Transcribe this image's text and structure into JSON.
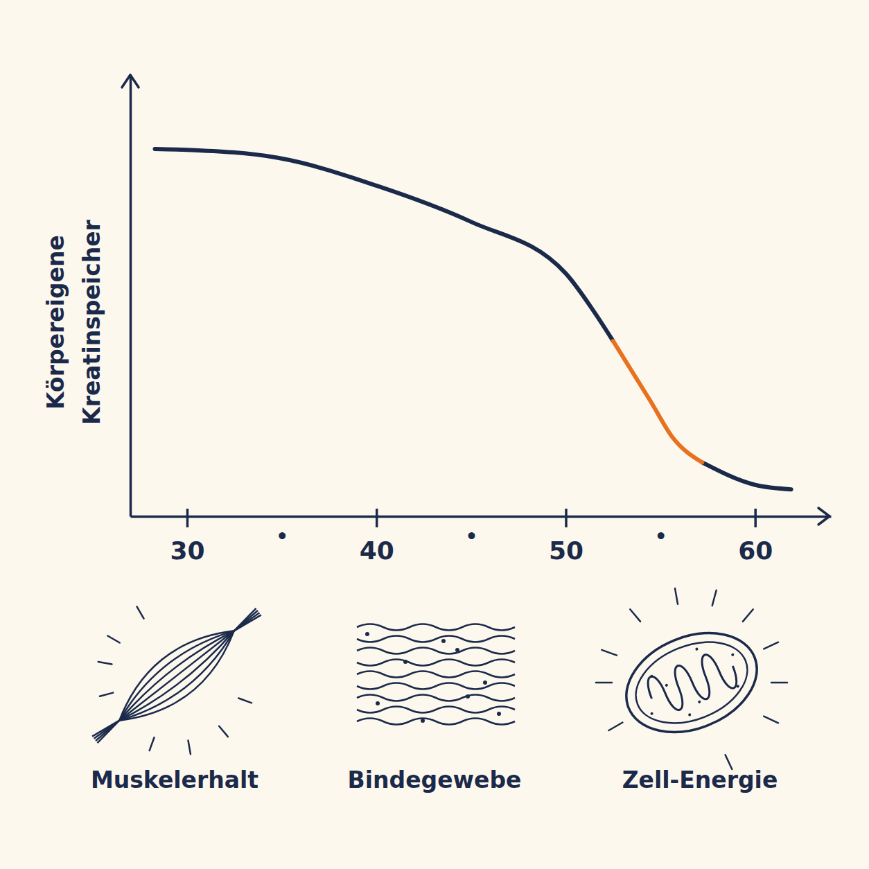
{
  "chart_data": {
    "type": "line",
    "ylabel": "Körpereigene Kreatinspeicher",
    "x": [
      28.3,
      30,
      34.8,
      40,
      45,
      50,
      51.5,
      52.5,
      54.5,
      55.6,
      57.2,
      60,
      61.9
    ],
    "series": [
      {
        "color": "#1b2a4a",
        "values": [
          83.2,
          83.0,
          81.2,
          74.9,
          66.7,
          55.0,
          46.3,
          39.7,
          null,
          null,
          12.2,
          7.1,
          6.1
        ]
      },
      {
        "color": "#e8711f",
        "values": [
          null,
          null,
          null,
          null,
          null,
          null,
          null,
          39.7,
          25.9,
          18.1,
          12.2,
          null,
          null
        ]
      }
    ],
    "xlim": [
      27,
      64
    ],
    "xticks": [
      30,
      {
        "value": 35,
        "label": "•"
      },
      40,
      {
        "value": 45,
        "label": "•"
      },
      50,
      {
        "value": 55,
        "label": "•"
      },
      60
    ],
    "ylim": [
      0,
      100
    ],
    "tick_labels": "x",
    "grid": false
  },
  "icons": [
    {
      "label": "Muskelerhalt"
    },
    {
      "label": "Bindegewebe"
    },
    {
      "label": "Zell-Energie"
    }
  ]
}
